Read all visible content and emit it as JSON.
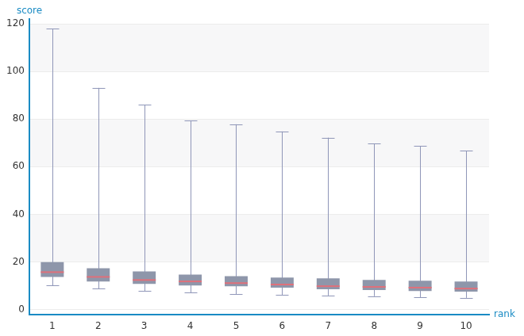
{
  "chart_data": {
    "type": "box",
    "x_label": "rank",
    "y_label": "score",
    "categories": [
      "1",
      "2",
      "3",
      "4",
      "5",
      "6",
      "7",
      "8",
      "9",
      "10"
    ],
    "min": [
      10.1,
      8.8,
      7.8,
      7.2,
      6.5,
      6.2,
      5.9,
      5.6,
      5.2,
      4.9
    ],
    "q1": [
      13.7,
      11.8,
      10.8,
      10.1,
      9.8,
      9.2,
      8.5,
      8.2,
      7.8,
      7.5
    ],
    "median": [
      15.7,
      13.7,
      12.4,
      11.8,
      11.1,
      10.5,
      9.8,
      9.5,
      9.2,
      8.8
    ],
    "q3": [
      19.9,
      17.3,
      16.0,
      14.7,
      14.0,
      13.4,
      13.1,
      12.4,
      12.1,
      11.8
    ],
    "max": [
      118,
      93.1,
      86,
      79.4,
      77.8,
      74.8,
      72.2,
      69.6,
      68.6,
      66.7
    ],
    "color": "#8e96aa",
    "ylim": [
      -2,
      122
    ],
    "yticks": [
      0,
      20,
      40,
      60,
      80,
      100,
      120
    ],
    "grid": true
  }
}
